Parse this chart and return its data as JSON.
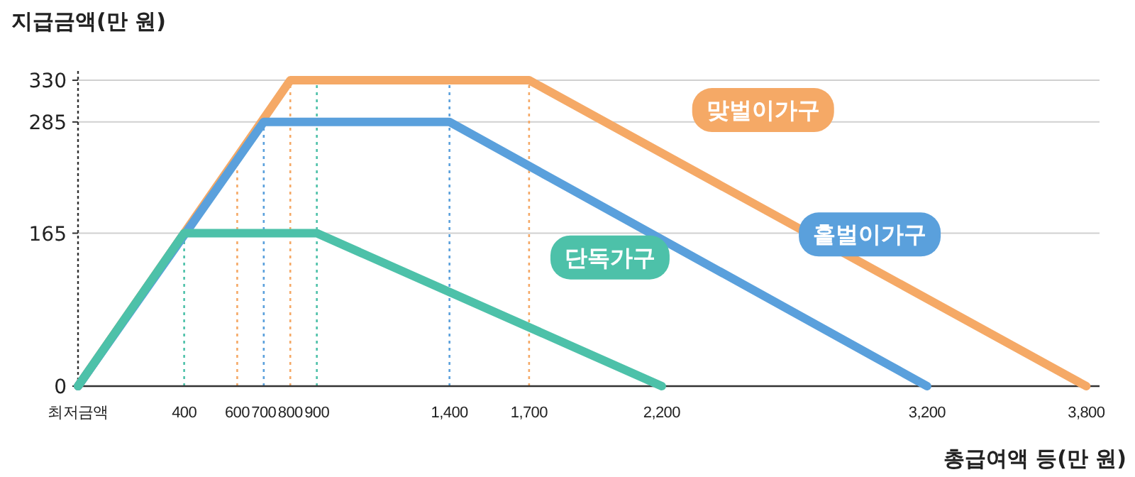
{
  "chart_data": {
    "type": "line",
    "ylabel": "지급금액(만 원)",
    "xlabel": "총급여액 등(만 원)",
    "xlim": [
      0,
      3850
    ],
    "ylim": [
      0,
      340
    ],
    "xticks": [
      {
        "value": 0,
        "label": "최저금액"
      },
      400,
      600,
      700,
      800,
      900,
      {
        "value": 1400,
        "label": "1,400"
      },
      {
        "value": 1700,
        "label": "1,700"
      },
      {
        "value": 2200,
        "label": "2,200"
      },
      {
        "value": 3200,
        "label": "3,200"
      },
      {
        "value": 3800,
        "label": "3,800"
      }
    ],
    "yticks": [
      0,
      165,
      285,
      330
    ],
    "grid": "y",
    "marker": "none",
    "line_style": "solid",
    "series": [
      {
        "name": "맞벌이가구",
        "color": "#f5a966",
        "x": [
          0,
          800,
          1700,
          3800
        ],
        "values": [
          0,
          330,
          330,
          0
        ]
      },
      {
        "name": "홑벌이가구",
        "color": "#5aa0dc",
        "x": [
          0,
          700,
          1400,
          3200
        ],
        "values": [
          0,
          285,
          285,
          0
        ]
      },
      {
        "name": "단독가구",
        "color": "#4dc1a9",
        "x": [
          0,
          400,
          900,
          2200
        ],
        "values": [
          0,
          165,
          165,
          0
        ]
      }
    ],
    "ref_lines": [
      {
        "axis": "x",
        "value": 400,
        "color": "#4dc1a9",
        "line_style": "dotted"
      },
      {
        "axis": "x",
        "value": 600,
        "color": "#f5a966",
        "line_style": "dotted"
      },
      {
        "axis": "x",
        "value": 700,
        "color": "#5aa0dc",
        "line_style": "dotted"
      },
      {
        "axis": "x",
        "value": 800,
        "color": "#f5a966",
        "line_style": "dotted"
      },
      {
        "axis": "x",
        "value": 900,
        "color": "#4dc1a9",
        "line_style": "dotted"
      },
      {
        "axis": "x",
        "value": 1400,
        "color": "#5aa0dc",
        "line_style": "dotted"
      },
      {
        "axis": "x",
        "value": 1700,
        "color": "#f5a966",
        "line_style": "dotted"
      }
    ]
  }
}
